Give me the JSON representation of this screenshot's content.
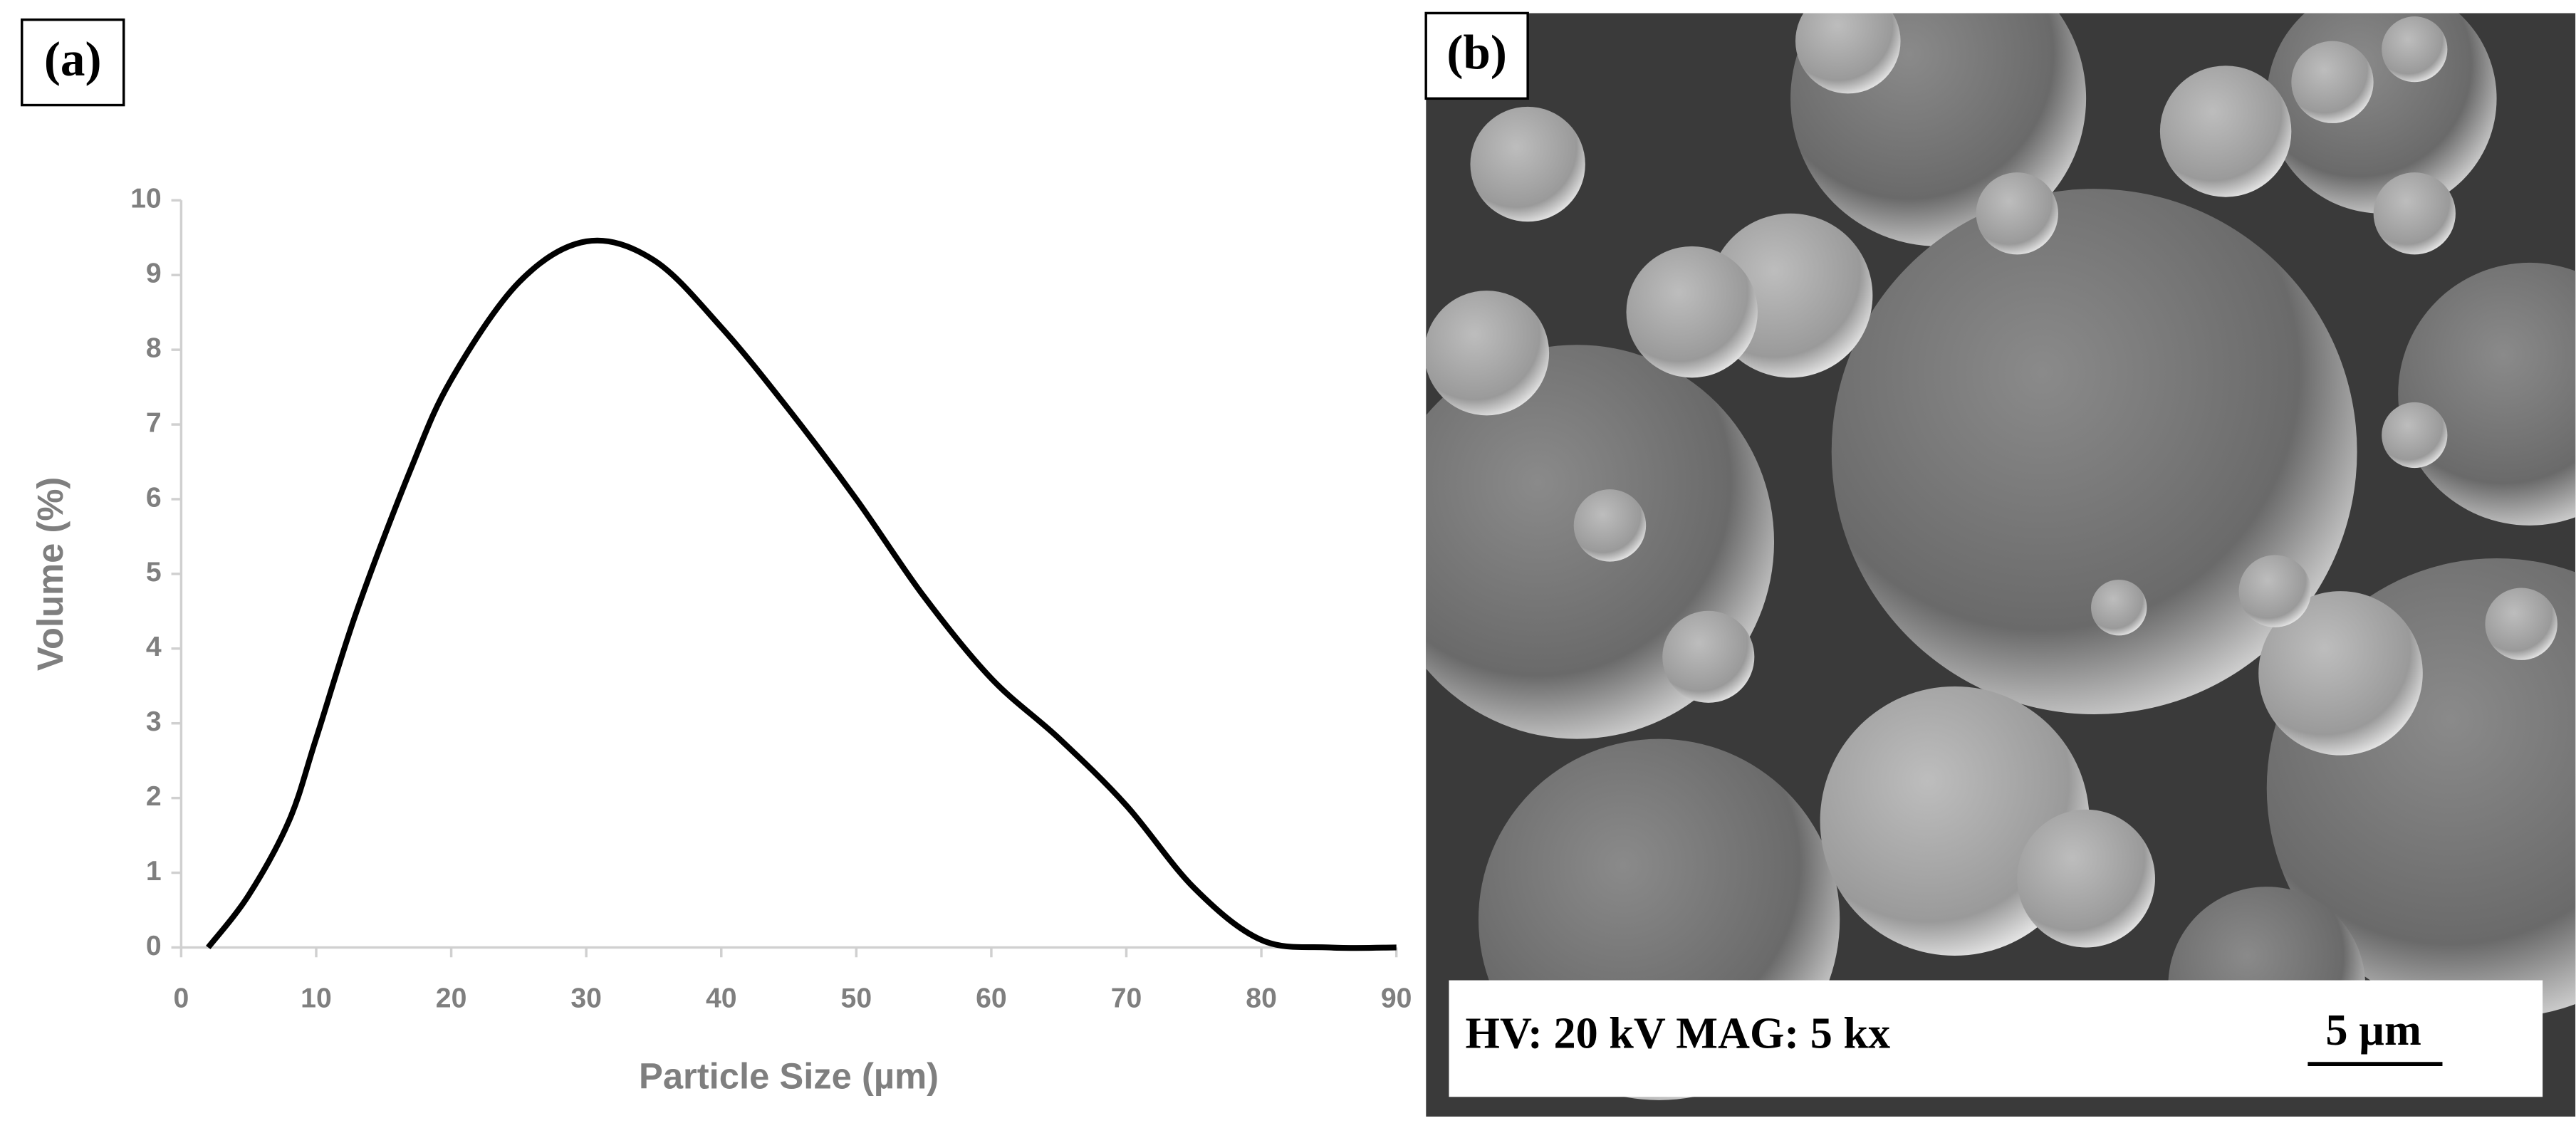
{
  "chart_data": {
    "type": "line",
    "label": "(a)",
    "x_label": "Particle Size  (µm)",
    "y_label": "Volume  (%)",
    "x": [
      2,
      5,
      8,
      10,
      13,
      17,
      20,
      25,
      30,
      35,
      40,
      45,
      50,
      55,
      60,
      65,
      70,
      75,
      80,
      85,
      90
    ],
    "values": [
      0,
      0.7,
      1.7,
      2.8,
      4.5,
      6.4,
      7.6,
      8.9,
      9.45,
      9.2,
      8.3,
      7.2,
      6.0,
      4.7,
      3.6,
      2.8,
      1.9,
      0.8,
      0.1,
      0,
      0
    ],
    "color": "#000000",
    "xlim": [
      0,
      90
    ],
    "xticks": [
      0,
      10,
      20,
      30,
      40,
      50,
      60,
      70,
      80,
      90
    ],
    "ylim": [
      0,
      10
    ],
    "yticks": [
      0,
      1,
      2,
      3,
      4,
      5,
      6,
      7,
      8,
      9,
      10
    ]
  },
  "panel_b": {
    "label": "(b)",
    "info": "HV: 20 kV   MAG: 5 kx",
    "scale_bar": "5 µm"
  }
}
